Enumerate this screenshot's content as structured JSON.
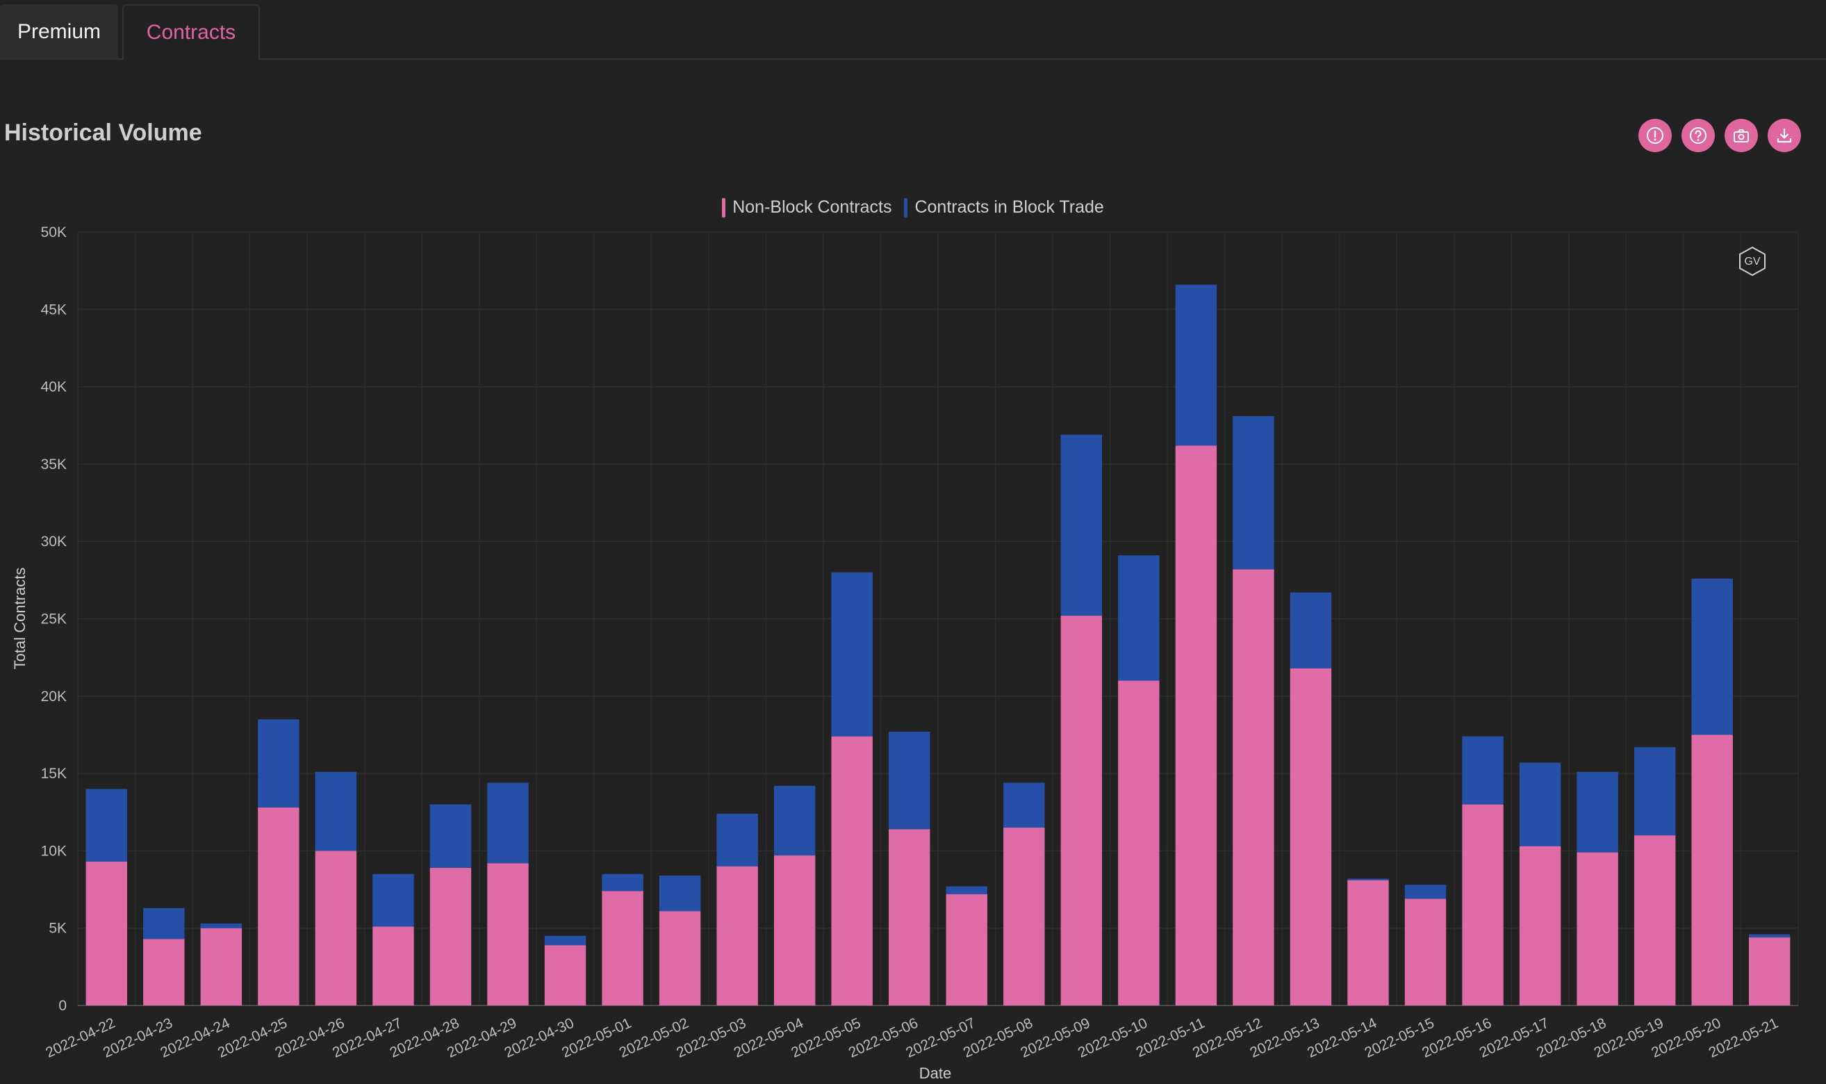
{
  "tabs": [
    {
      "label": "Premium",
      "active": false
    },
    {
      "label": "Contracts",
      "active": true
    }
  ],
  "panel": {
    "title": "Historical Volume",
    "tools": [
      {
        "icon": "exclamation-icon"
      },
      {
        "icon": "help-icon"
      },
      {
        "icon": "camera-icon"
      },
      {
        "icon": "download-icon"
      }
    ],
    "logo_text": "GV"
  },
  "colors": {
    "accent": "#e0669f",
    "non_block": "#e06ca7",
    "block": "#2650a8",
    "background": "#222222"
  },
  "chart_data": {
    "type": "bar",
    "stacked": true,
    "xlabel": "Date",
    "ylabel": "Total Contracts",
    "ylim": [
      0,
      50000
    ],
    "yticks": [
      0,
      5000,
      10000,
      15000,
      20000,
      25000,
      30000,
      35000,
      40000,
      45000,
      50000
    ],
    "ytick_labels": [
      "0",
      "5K",
      "10K",
      "15K",
      "20K",
      "25K",
      "30K",
      "35K",
      "40K",
      "45K",
      "50K"
    ],
    "legend_position": "top-center",
    "grid": true,
    "categories": [
      "2022-04-22",
      "2022-04-23",
      "2022-04-24",
      "2022-04-25",
      "2022-04-26",
      "2022-04-27",
      "2022-04-28",
      "2022-04-29",
      "2022-04-30",
      "2022-05-01",
      "2022-05-02",
      "2022-05-03",
      "2022-05-04",
      "2022-05-05",
      "2022-05-06",
      "2022-05-07",
      "2022-05-08",
      "2022-05-09",
      "2022-05-10",
      "2022-05-11",
      "2022-05-12",
      "2022-05-13",
      "2022-05-14",
      "2022-05-15",
      "2022-05-16",
      "2022-05-17",
      "2022-05-18",
      "2022-05-19",
      "2022-05-20",
      "2022-05-21"
    ],
    "series": [
      {
        "name": "Non-Block Contracts",
        "color": "#e06ca7",
        "values": [
          9300,
          4300,
          5000,
          12800,
          10000,
          5100,
          8900,
          9200,
          3900,
          7400,
          6100,
          9000,
          9700,
          17400,
          11400,
          7200,
          11500,
          25200,
          21000,
          36200,
          28200,
          21800,
          8100,
          6900,
          13000,
          10300,
          9900,
          11000,
          17500,
          4400
        ]
      },
      {
        "name": "Contracts in Block Trade",
        "color": "#2650a8",
        "values": [
          4700,
          2000,
          300,
          5700,
          5100,
          3400,
          4100,
          5200,
          600,
          1100,
          2300,
          3400,
          4500,
          10600,
          6300,
          500,
          2900,
          11700,
          8100,
          10400,
          9900,
          4900,
          100,
          900,
          4400,
          5400,
          5200,
          5700,
          10100,
          200
        ]
      }
    ]
  }
}
